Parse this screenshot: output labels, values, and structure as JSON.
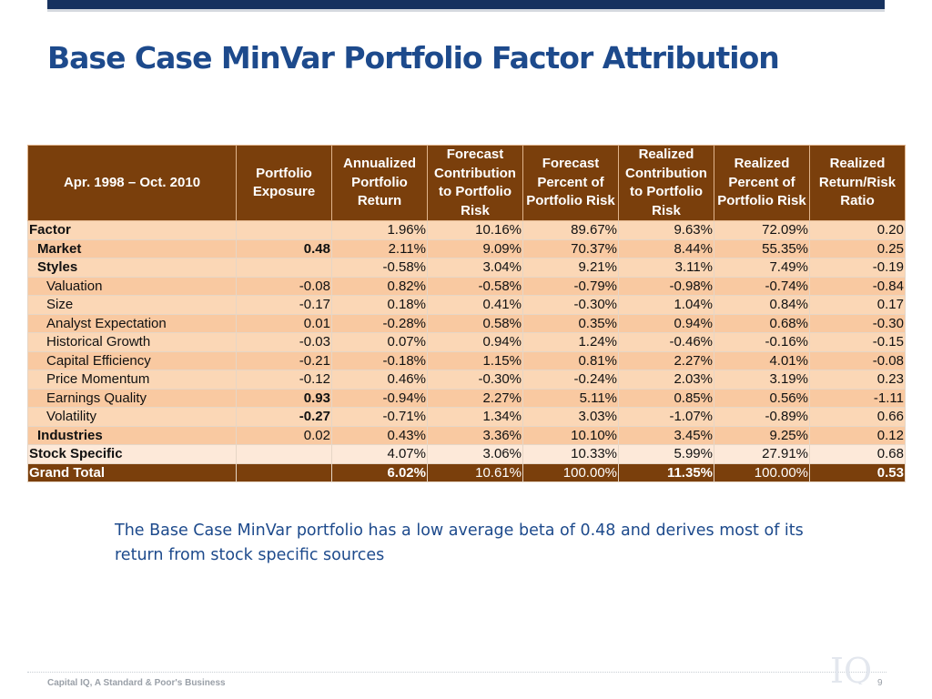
{
  "slide": {
    "title": "Base Case MinVar Portfolio Factor Attribution",
    "caption": "The Base Case MinVar portfolio has a low average beta of 0.48 and derives most of its return from stock specific sources",
    "footer": "Capital IQ, A Standard & Poor's Business",
    "page_number": "9",
    "logo_text": "IQ"
  },
  "colors": {
    "title": "#1d4a8c",
    "header_fill": "#7a3f0c",
    "row_light": "#fbd7b6",
    "row_dark": "#f9c9a1",
    "row_pale": "#fde9d9",
    "top_band": "#17325f"
  },
  "table": {
    "headers": [
      "Apr. 1998 – Oct. 2010",
      "Portfolio Exposure",
      "Annualized Portfolio Return",
      "Forecast Contribution to Portfolio Risk",
      "Forecast Percent of Portfolio Risk",
      "Realized Contribution to Portfolio Risk",
      "Realized Percent of Portfolio Risk",
      "Realized Return/Risk Ratio"
    ],
    "rows": [
      {
        "label": "Factor",
        "level": 0,
        "band": "a",
        "exposure": "",
        "exposure_bold": false,
        "values": [
          "1.96%",
          "10.16%",
          "89.67%",
          "9.63%",
          "72.09%",
          "0.20"
        ]
      },
      {
        "label": "Market",
        "level": 1,
        "band": "b",
        "exposure": "0.48",
        "exposure_bold": true,
        "values": [
          "2.11%",
          "9.09%",
          "70.37%",
          "8.44%",
          "55.35%",
          "0.25"
        ]
      },
      {
        "label": "Styles",
        "level": 1,
        "band": "a",
        "exposure": "",
        "exposure_bold": false,
        "values": [
          "-0.58%",
          "3.04%",
          "9.21%",
          "3.11%",
          "7.49%",
          "-0.19"
        ]
      },
      {
        "label": "Valuation",
        "level": 2,
        "band": "b",
        "exposure": "-0.08",
        "exposure_bold": false,
        "values": [
          "0.82%",
          "-0.58%",
          "-0.79%",
          "-0.98%",
          "-0.74%",
          "-0.84"
        ]
      },
      {
        "label": "Size",
        "level": 2,
        "band": "a",
        "exposure": "-0.17",
        "exposure_bold": false,
        "values": [
          "0.18%",
          "0.41%",
          "-0.30%",
          "1.04%",
          "0.84%",
          "0.17"
        ]
      },
      {
        "label": "Analyst Expectation",
        "level": 2,
        "band": "b",
        "exposure": "0.01",
        "exposure_bold": false,
        "values": [
          "-0.28%",
          "0.58%",
          "0.35%",
          "0.94%",
          "0.68%",
          "-0.30"
        ]
      },
      {
        "label": "Historical Growth",
        "level": 2,
        "band": "a",
        "exposure": "-0.03",
        "exposure_bold": false,
        "values": [
          "0.07%",
          "0.94%",
          "1.24%",
          "-0.46%",
          "-0.16%",
          "-0.15"
        ]
      },
      {
        "label": "Capital Efficiency",
        "level": 2,
        "band": "b",
        "exposure": "-0.21",
        "exposure_bold": false,
        "values": [
          "-0.18%",
          "1.15%",
          "0.81%",
          "2.27%",
          "4.01%",
          "-0.08"
        ]
      },
      {
        "label": "Price Momentum",
        "level": 2,
        "band": "a",
        "exposure": "-0.12",
        "exposure_bold": false,
        "values": [
          "0.46%",
          "-0.30%",
          "-0.24%",
          "2.03%",
          "3.19%",
          "0.23"
        ]
      },
      {
        "label": "Earnings Quality",
        "level": 2,
        "band": "b",
        "exposure": "0.93",
        "exposure_bold": true,
        "values": [
          "-0.94%",
          "2.27%",
          "5.11%",
          "0.85%",
          "0.56%",
          "-1.11"
        ]
      },
      {
        "label": "Volatility",
        "level": 2,
        "band": "a",
        "exposure": "-0.27",
        "exposure_bold": true,
        "values": [
          "-0.71%",
          "1.34%",
          "3.03%",
          "-1.07%",
          "-0.89%",
          "0.66"
        ]
      },
      {
        "label": "Industries",
        "level": 1,
        "band": "b",
        "exposure": "0.02",
        "exposure_bold": false,
        "values": [
          "0.43%",
          "3.36%",
          "10.10%",
          "3.45%",
          "9.25%",
          "0.12"
        ]
      },
      {
        "label": "Stock Specific",
        "level": 0,
        "band": "c",
        "exposure": "",
        "exposure_bold": false,
        "values": [
          "4.07%",
          "3.06%",
          "10.33%",
          "5.99%",
          "27.91%",
          "0.68"
        ]
      }
    ],
    "total": {
      "label": "Grand Total",
      "exposure": "",
      "values": [
        "6.02%",
        "10.61%",
        "100.00%",
        "11.35%",
        "100.00%",
        "0.53"
      ]
    }
  }
}
